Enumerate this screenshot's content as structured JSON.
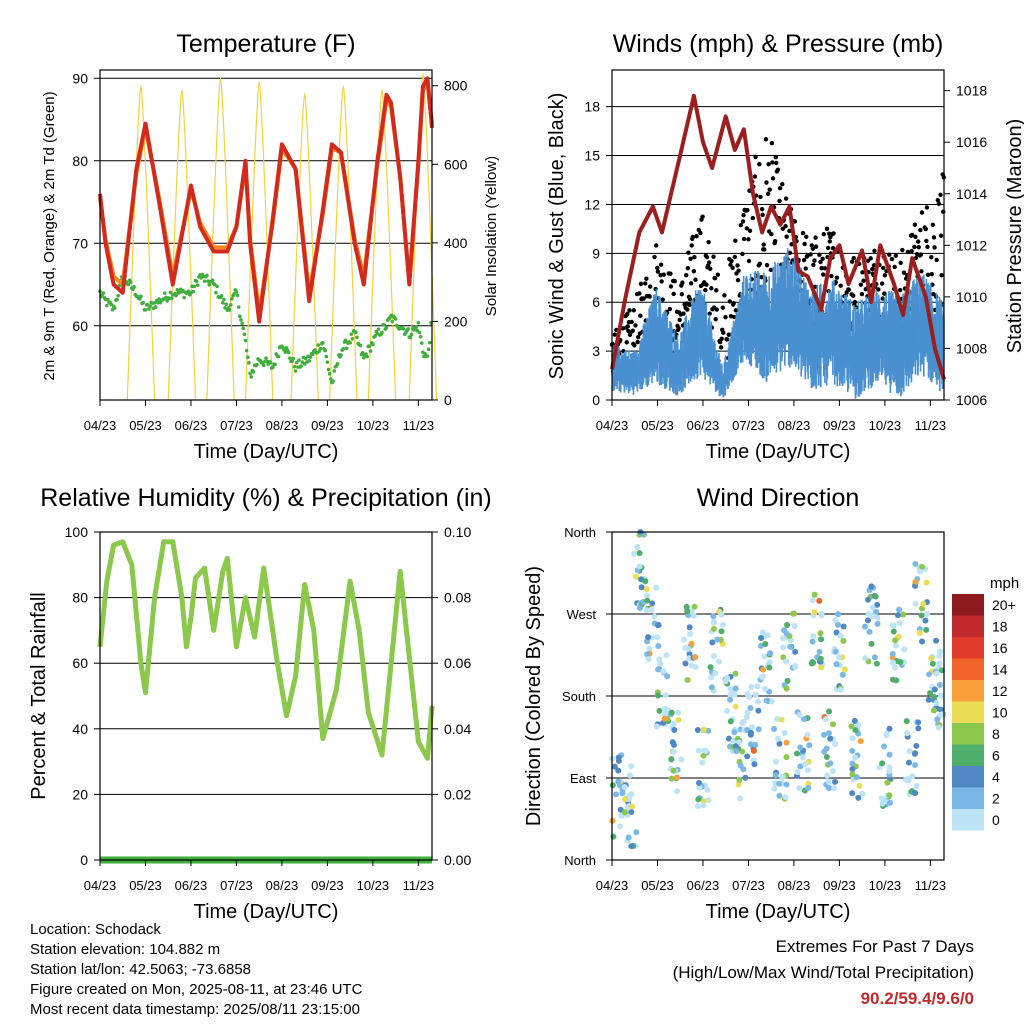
{
  "x_ticks": [
    "04/23",
    "05/23",
    "06/23",
    "07/23",
    "08/23",
    "09/23",
    "10/23",
    "11/23"
  ],
  "x_label": "Time (Day/UTC)",
  "info": {
    "location": "Location: Schodack",
    "elevation": "Station elevation: 104.882 m",
    "latlon": "Station lat/lon: 42.5063; -73.6858",
    "created": "Figure created on Mon, 2025-08-11, at 23:46 UTC",
    "recent": "Most recent data timestamp: 2025/08/11 23:15:00"
  },
  "extremes": {
    "title": "Extremes For Past 7 Days",
    "subtitle": "(High/Low/Max Wind/Total Precipitation)",
    "values": "90.2/59.4/9.6/0"
  },
  "chart_data": [
    {
      "type": "line",
      "title": "Temperature (F)",
      "ylabel_left": "2m & 9m T (Red, Orange) & 2m Td (Green)",
      "ylabel_right": "Solar Insolation (Yellow)",
      "ylim_left": [
        51,
        91
      ],
      "yticks_left": [
        60,
        70,
        80,
        90
      ],
      "ylim_right": [
        0,
        840
      ],
      "yticks_right": [
        0,
        200,
        400,
        600,
        800
      ],
      "grid_y": [
        60,
        70,
        80,
        90
      ],
      "x": [
        0,
        0.12,
        0.3,
        0.5,
        0.8,
        1.0,
        1.3,
        1.6,
        2.0,
        2.2,
        2.5,
        2.8,
        3.0,
        3.2,
        3.3,
        3.5,
        3.8,
        4.0,
        4.3,
        4.6,
        4.9,
        5.1,
        5.3,
        5.6,
        5.8,
        6.1,
        6.3,
        6.4,
        6.6,
        6.8,
        7.0,
        7.1,
        7.2,
        7.3
      ],
      "series": [
        {
          "name": "2m T",
          "color": "#d42a1e",
          "values": [
            76,
            70,
            65,
            64,
            79,
            84.5,
            75,
            65,
            77,
            72,
            69,
            69,
            72,
            80,
            70,
            60.5,
            73,
            82,
            79,
            63,
            74,
            82,
            81,
            70,
            65,
            80,
            88,
            87,
            78,
            65,
            80,
            89,
            90,
            84
          ]
        },
        {
          "name": "9m T",
          "color": "#f08a1a",
          "values": [
            75.5,
            70.5,
            66,
            65,
            78.5,
            84,
            75.5,
            66,
            76.5,
            72.5,
            69.5,
            69.5,
            72,
            79.5,
            70.5,
            61.5,
            72.5,
            81.5,
            79,
            64,
            73.5,
            81.5,
            81,
            70.5,
            66,
            79.5,
            87.5,
            86.5,
            78,
            65.5,
            79.5,
            88.5,
            89.5,
            84.5
          ]
        },
        {
          "name": "2m Td",
          "color": "#3fae3c",
          "values": [
            64,
            63,
            62,
            66,
            64,
            62,
            63,
            64,
            64,
            66,
            65,
            62,
            64,
            58,
            54,
            56,
            55,
            58,
            55,
            56,
            58,
            53,
            57,
            59,
            56,
            59,
            60,
            61,
            60,
            59,
            60,
            57,
            56,
            61
          ]
        },
        {
          "name": "Solar Insolation",
          "color": "#f5d23a",
          "axis": "right",
          "peaks_x": [
            0.9,
            1.8,
            2.65,
            3.5,
            4.5,
            5.35,
            6.2,
            7.1
          ],
          "peak_values": [
            800,
            790,
            820,
            810,
            780,
            800,
            790,
            830
          ]
        }
      ]
    },
    {
      "type": "scatter",
      "title": "Winds (mph) & Pressure (mb)",
      "ylabel_left": "Sonic Wind & Gust (Blue, Black)",
      "ylabel_right": "Station Pressure (Maroon)",
      "ylim_left": [
        0,
        20.25
      ],
      "yticks_left": [
        0,
        3,
        6,
        9,
        12,
        15,
        18
      ],
      "ylim_right": [
        1006,
        1018.8
      ],
      "yticks_right": [
        1006,
        1008,
        1010,
        1012,
        1014,
        1016,
        1018
      ],
      "grid_y": [
        3,
        6,
        9,
        12,
        15,
        18
      ],
      "series": [
        {
          "name": "Sonic Wind",
          "color": "#4a90d0",
          "envelope_low": [
            0.5,
            0.3,
            1.0,
            0.2,
            1.5,
            0.0,
            2.5,
            1.0,
            2.0,
            0.5,
            1.0,
            0.0,
            1.0,
            0.0,
            1.5,
            0.3
          ],
          "envelope_high": [
            3.5,
            3.0,
            7.0,
            4.0,
            7.5,
            2.0,
            8.0,
            8.0,
            9.5,
            7.0,
            7.5,
            6.0,
            7.0,
            6.5,
            8.0,
            6.0
          ]
        },
        {
          "name": "Gust",
          "color": "#000000",
          "envelope_low": [
            1,
            1,
            4,
            2,
            5,
            0.5,
            5,
            4,
            6,
            3,
            4,
            2,
            4,
            2,
            5,
            3
          ],
          "envelope_high": [
            4,
            6,
            10,
            7,
            12,
            7,
            13,
            17,
            12,
            10,
            11,
            9,
            10,
            9,
            12,
            14
          ]
        },
        {
          "name": "Station Pressure",
          "color": "#9b1f1f",
          "x": [
            0,
            0.3,
            0.6,
            0.9,
            1.1,
            1.3,
            1.5,
            1.8,
            2.0,
            2.2,
            2.5,
            2.7,
            2.9,
            3.1,
            3.3,
            3.5,
            3.7,
            3.9,
            4.1,
            4.3,
            4.6,
            4.8,
            5.0,
            5.2,
            5.5,
            5.7,
            5.9,
            6.2,
            6.4,
            6.6,
            6.9,
            7.1,
            7.3
          ],
          "values": [
            1007.2,
            1010,
            1012.5,
            1013.5,
            1012.5,
            1014,
            1015.5,
            1017.8,
            1016,
            1015,
            1017,
            1015.7,
            1016.5,
            1014,
            1012.5,
            1013.5,
            1012.8,
            1013.5,
            1011,
            1010.8,
            1009.5,
            1011.5,
            1012,
            1010.5,
            1011.8,
            1009.8,
            1012,
            1010.5,
            1009.3,
            1011.5,
            1010,
            1008,
            1006.8
          ]
        }
      ]
    },
    {
      "type": "line",
      "title": "Relative Humidity (%) & Precipitation (in)",
      "ylabel_left": "Percent & Total Rainfall",
      "ylim_left": [
        0,
        100
      ],
      "yticks_left": [
        0,
        20,
        40,
        60,
        80,
        100
      ],
      "ylim_right": [
        0,
        0.1
      ],
      "yticks_right": [
        "0.00",
        "0.02",
        "0.04",
        "0.06",
        "0.08",
        "0.10"
      ],
      "grid_y": [
        20,
        40,
        60,
        80
      ],
      "x": [
        0,
        0.15,
        0.3,
        0.5,
        0.7,
        0.9,
        1.0,
        1.2,
        1.4,
        1.6,
        1.8,
        1.9,
        2.0,
        2.1,
        2.3,
        2.5,
        2.7,
        2.8,
        3.0,
        3.2,
        3.4,
        3.6,
        3.9,
        4.1,
        4.3,
        4.5,
        4.7,
        4.9,
        5.2,
        5.5,
        5.7,
        5.9,
        6.2,
        6.4,
        6.6,
        6.8,
        7.0,
        7.2,
        7.3
      ],
      "series": [
        {
          "name": "Relative Humidity",
          "color": "#8cc84b",
          "values": [
            65,
            85,
            96,
            97,
            90,
            60,
            51,
            80,
            97,
            97,
            80,
            65,
            74,
            86,
            89,
            70,
            88,
            92,
            65,
            80,
            68,
            89,
            60,
            44,
            56,
            84,
            70,
            37,
            52,
            85,
            70,
            45,
            32,
            60,
            88,
            62,
            36,
            31,
            47
          ]
        },
        {
          "name": "Precipitation",
          "color": "#3fae3c",
          "values": [
            0,
            0,
            0,
            0,
            0,
            0,
            0,
            0,
            0,
            0,
            0,
            0,
            0,
            0,
            0,
            0,
            0,
            0,
            0,
            0,
            0,
            0,
            0,
            0,
            0,
            0,
            0,
            0,
            0,
            0,
            0,
            0,
            0,
            0,
            0,
            0,
            0,
            0,
            0
          ]
        }
      ]
    },
    {
      "type": "scatter",
      "title": "Wind Direction",
      "ylabel": "Direction (Colored By Speed)",
      "yticks": [
        "North",
        "East",
        "South",
        "West",
        "North"
      ],
      "grid_y": [
        "East",
        "South",
        "West"
      ],
      "legend_title": "mph",
      "legend_labels": [
        "20+",
        "18",
        "16",
        "14",
        "12",
        "10",
        "8",
        "6",
        "4",
        "2",
        "0"
      ],
      "legend_colors": [
        "#8e1b1d",
        "#c0282b",
        "#e03c2e",
        "#f0642a",
        "#f7a03c",
        "#eadd55",
        "#8cc84b",
        "#4fae6a",
        "#4f88c2",
        "#7cb8e6",
        "#bde3f7"
      ],
      "clusters": [
        {
          "x": 0.1,
          "dir": 70
        },
        {
          "x": 0.4,
          "dir": 60
        },
        {
          "x": 0.6,
          "dir": 320
        },
        {
          "x": 0.9,
          "dir": 260
        },
        {
          "x": 1.1,
          "dir": 180
        },
        {
          "x": 1.4,
          "dir": 120
        },
        {
          "x": 1.7,
          "dir": 240
        },
        {
          "x": 2.0,
          "dir": 100
        },
        {
          "x": 2.3,
          "dir": 230
        },
        {
          "x": 2.6,
          "dir": 160
        },
        {
          "x": 2.8,
          "dir": 110
        },
        {
          "x": 3.1,
          "dir": 150
        },
        {
          "x": 3.4,
          "dir": 210
        },
        {
          "x": 3.7,
          "dir": 110
        },
        {
          "x": 3.9,
          "dir": 230
        },
        {
          "x": 4.2,
          "dir": 120
        },
        {
          "x": 4.5,
          "dir": 250
        },
        {
          "x": 4.8,
          "dir": 120
        },
        {
          "x": 5.0,
          "dir": 230
        },
        {
          "x": 5.4,
          "dir": 110
        },
        {
          "x": 5.7,
          "dir": 260
        },
        {
          "x": 6.0,
          "dir": 100
        },
        {
          "x": 6.3,
          "dir": 230
        },
        {
          "x": 6.6,
          "dir": 110
        },
        {
          "x": 6.8,
          "dir": 280
        },
        {
          "x": 7.1,
          "dir": 200
        },
        {
          "x": 7.25,
          "dir": 190
        }
      ]
    }
  ]
}
